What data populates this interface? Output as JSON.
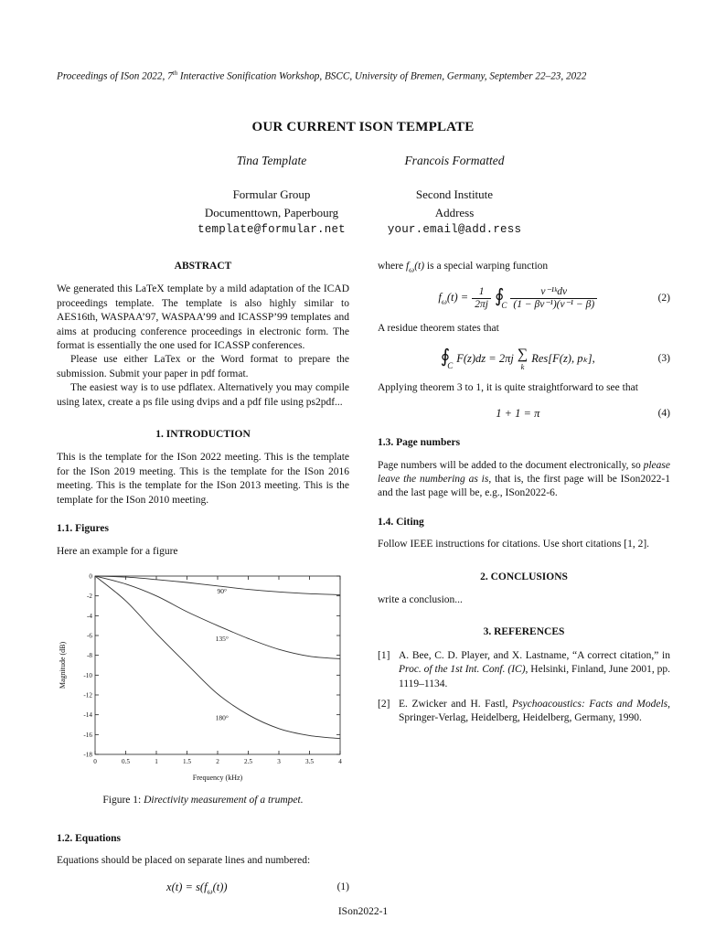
{
  "running_head": {
    "pre": "Proceedings of ISon 2022, 7",
    "sup": "th",
    "post": " Interactive Sonification Workshop, BSCC, University of Bremen, Germany, September 22–23, 2022"
  },
  "title": "OUR CURRENT ISON TEMPLATE",
  "authors": [
    {
      "name": "Tina Template",
      "affiliation": [
        "Formular Group",
        "Documenttown, Paperbourg"
      ],
      "email": "template@formular.net"
    },
    {
      "name": "Francois Formatted",
      "affiliation": [
        "Second Institute",
        "Address"
      ],
      "email": "your.email@add.ress"
    }
  ],
  "abstract": {
    "heading": "ABSTRACT",
    "p1": "We generated this LaTeX template by a mild adaptation of the ICAD proceedings template. The template is also highly similar to AES16th, WASPAA’97, WASPAA’99 and ICASSP’99 templates and aims at producing conference proceedings in electronic form. The format is essentially the one used for ICASSP conferences.",
    "p2": "Please use either LaTex or the Word format to prepare the submission. Submit your paper in pdf format.",
    "p3": "The easiest way is to use pdflatex. Alternatively you may compile using latex, create a ps file using dvips and a pdf file using ps2pdf..."
  },
  "introduction": {
    "heading": "1.  INTRODUCTION",
    "body": "This is the template for the ISon 2022 meeting. This is the template for the ISon 2019 meeting. This is the template for the ISon 2016 meeting. This is the template for the ISon 2013 meeting. This is the template for the ISon 2010 meeting."
  },
  "figures_sec": {
    "heading": "1.1.  Figures",
    "body": "Here an example for a figure"
  },
  "figure": {
    "caption_label": "Figure 1: ",
    "caption_text": "Directivity measurement of a trumpet.",
    "chart_data": {
      "type": "line",
      "title": "",
      "xlabel": "Frequency (kHz)",
      "ylabel": "Magnitude (dB)",
      "xlim": [
        0,
        4
      ],
      "ylim": [
        -18,
        0
      ],
      "xticks": [
        "0",
        "0.5",
        "1",
        "1.5",
        "2",
        "2.5",
        "3",
        "3.5",
        "4"
      ],
      "yticks": [
        "0",
        "-2",
        "-4",
        "-6",
        "-8",
        "-10",
        "-12",
        "-14",
        "-16",
        "-18"
      ],
      "grid": false,
      "legend_position": "inline-labels",
      "x": [
        0,
        0.5,
        1,
        1.5,
        2,
        2.5,
        3,
        3.5,
        4
      ],
      "series": [
        {
          "name": "90°",
          "values": [
            0,
            -0.1,
            -0.35,
            -0.65,
            -1.0,
            -1.35,
            -1.6,
            -1.78,
            -1.88
          ]
        },
        {
          "name": "135°",
          "values": [
            0,
            -0.8,
            -2.0,
            -3.6,
            -5.0,
            -6.3,
            -7.4,
            -8.1,
            -8.35
          ]
        },
        {
          "name": "180°",
          "values": [
            0,
            -2.5,
            -5.8,
            -8.9,
            -11.9,
            -14.0,
            -15.4,
            -16.1,
            -16.4
          ]
        }
      ],
      "annotations": [
        {
          "text": "90°",
          "x": 2.07,
          "y": -1.75
        },
        {
          "text": "135°",
          "x": 2.07,
          "y": -6.55
        },
        {
          "text": "180°",
          "x": 2.07,
          "y": -14.55
        }
      ]
    }
  },
  "equations_sec": {
    "heading": "1.2.  Equations",
    "body": "Equations should be placed on separate lines and numbered:",
    "eq1": {
      "pre": "x(t) = s(f",
      "sub": "ω",
      "post": "(t))",
      "number": "(1)"
    }
  },
  "warping": {
    "pre": "where ",
    "f": "f",
    "sub": "ω",
    "arg": "(t)",
    "post": " is a special warping function"
  },
  "eq2": {
    "lhs_f": "f",
    "lhs_sub": "ω",
    "lhs_rest": "(t) =",
    "frac1_num": "1",
    "frac1_den": "2πj",
    "oint": "∮",
    "oint_sub": "C",
    "frac2_num": "ν⁻¹ᵏdν",
    "frac2_den": "(1 − βν⁻¹)(ν⁻¹ − β)",
    "number": "(2)"
  },
  "residue": {
    "text": "A residue theorem states that"
  },
  "eq3": {
    "oint": "∮",
    "oint_sub": "C",
    "mid": "F(z)dz = 2πj",
    "sum": "∑",
    "sum_sub": "k",
    "post": "Res[F(z), pₖ],",
    "number": "(3)"
  },
  "applying": {
    "text": "Applying theorem 3 to 1, it is quite straightforward to see that"
  },
  "eq4": {
    "body": "1 + 1 = π",
    "number": "(4)"
  },
  "page_numbers_sec": {
    "heading": "1.3.  Page numbers",
    "pre": "Page numbers will be added to the document electronically, so ",
    "italic": "please leave the numbering as is",
    "post": ", that is, the first page will be ISon2022-1 and the last page will be, e.g., ISon2022-6."
  },
  "citing_sec": {
    "heading": "1.4.  Citing",
    "body": "Follow IEEE instructions for citations. Use short citations [1, 2]."
  },
  "conclusions": {
    "heading": "2.  CONCLUSIONS",
    "body": "write a conclusion..."
  },
  "references": {
    "heading": "3.  REFERENCES",
    "items": [
      {
        "label": "[1]",
        "pre": "A. Bee, C. D. Player, and X. Lastname, “A correct citation,” in ",
        "italic": "Proc. of the 1st Int. Conf. (IC)",
        "post": ", Helsinki, Finland, June 2001, pp. 1119–1134."
      },
      {
        "label": "[2]",
        "pre": "E. Zwicker and H. Fastl, ",
        "italic": "Psychoacoustics: Facts and Models",
        "post": ", Springer-Verlag, Heidelberg, Heidelberg, Germany, 1990."
      }
    ]
  },
  "footer": {
    "page_label": "ISon2022-1"
  }
}
